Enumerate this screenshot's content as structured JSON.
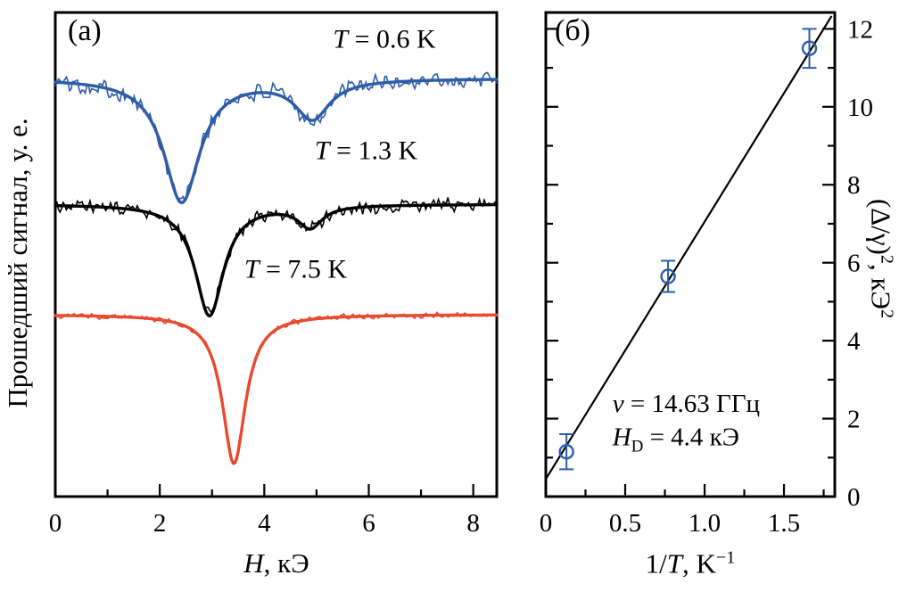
{
  "chart_data": [
    {
      "type": "line",
      "panel": "(a)",
      "xlabel": "H, кЭ",
      "xlabel_parts": {
        "var": "H",
        "rest": ", кЭ"
      },
      "ylabel": "Прошедший сигнал, у. е.",
      "xlim": [
        0,
        8.45
      ],
      "xticks": {
        "values": [
          0,
          2,
          4,
          6,
          8
        ],
        "labels": [
          "0",
          "2",
          "4",
          "6",
          "8"
        ],
        "minor_step": 1
      },
      "grid": false,
      "series": [
        {
          "name": "T = 0.6 K",
          "temperature_K": 0.6,
          "color": "#2e5ca6",
          "baseline": 0.864,
          "dips": [
            {
              "center": 2.42,
              "hwhm": 0.42,
              "depth": 0.255
            },
            {
              "center": 4.92,
              "hwhm": 0.4,
              "depth": 0.08
            }
          ],
          "noise": 0.01,
          "label": {
            "var": "T",
            "rest": " = 0.6 K",
            "x": 6.3,
            "y": 0.945
          }
        },
        {
          "name": "T = 1.3 K",
          "temperature_K": 1.3,
          "color": "#000000",
          "baseline": 0.604,
          "dips": [
            {
              "center": 2.95,
              "hwhm": 0.33,
              "depth": 0.23
            },
            {
              "center": 4.88,
              "hwhm": 0.28,
              "depth": 0.045
            }
          ],
          "noise": 0.008,
          "label": {
            "var": "T",
            "rest": " = 1.3 K",
            "x": 5.95,
            "y": 0.715
          }
        },
        {
          "name": "T = 7.5 K",
          "temperature_K": 7.5,
          "color": "#e8492f",
          "baseline": 0.376,
          "dips": [
            {
              "center": 3.42,
              "hwhm": 0.27,
              "depth": 0.308
            }
          ],
          "noise": 0.003,
          "label": {
            "var": "T",
            "rest": " = 7.5 K",
            "x": 4.6,
            "y": 0.47
          }
        }
      ]
    },
    {
      "type": "scatter",
      "panel": "(б)",
      "xlabel": "1/T, K⁻¹",
      "xlabel_parts": {
        "pre": "1/",
        "var": "T",
        "rest": ", K",
        "sup": "−1"
      },
      "ylabel": "(Δ/γ)², кЭ²",
      "ylabel_parts": {
        "base": "(Δ/γ)",
        "sup1": "2",
        "mid": ", кЭ",
        "sup2": "2"
      },
      "xlim": [
        0,
        1.82
      ],
      "ylim": [
        0,
        12.42
      ],
      "xticks": {
        "values": [
          0,
          0.5,
          1,
          1.5
        ],
        "labels": [
          "0",
          "0.5",
          "1.0",
          "1.5"
        ],
        "minor_step": 0.25
      },
      "yticks": {
        "values": [
          0,
          2,
          4,
          6,
          8,
          10,
          12
        ],
        "labels": [
          "0",
          "2",
          "4",
          "6",
          "8",
          "10",
          "12"
        ],
        "minor_step": 1
      },
      "grid": false,
      "points": {
        "x": [
          0.13,
          0.77,
          1.66
        ],
        "y": [
          1.15,
          5.65,
          11.5
        ],
        "yerr": [
          0.45,
          0.4,
          0.5
        ],
        "color": "#2e5ca6",
        "marker": "open-circle"
      },
      "fit_line": {
        "x": [
          0,
          1.8
        ],
        "y": [
          0.45,
          12.33
        ],
        "color": "#000000"
      },
      "annotations": [
        {
          "text": "ν = 14.63 ГГц",
          "var": "ν",
          "rest": " = 14.63 ГГц",
          "value_GHz": 14.63,
          "x": 0.42,
          "y": 2.35
        },
        {
          "text": "H_D = 4.4 кЭ",
          "var": "H",
          "sub": "D",
          "rest": " = 4.4 кЭ",
          "value_kOe": 4.4,
          "x": 0.42,
          "y": 1.45
        }
      ]
    }
  ]
}
